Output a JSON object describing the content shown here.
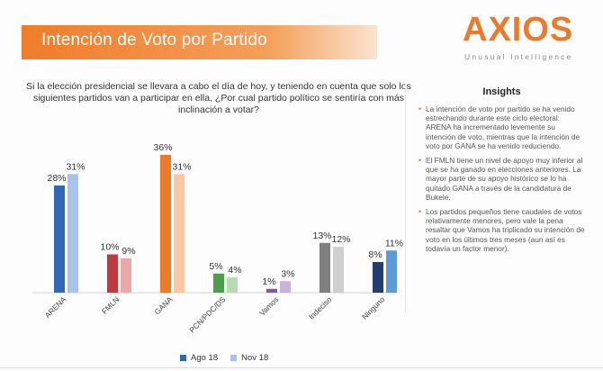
{
  "header": {
    "title": "Intención de Voto por Partido",
    "logo": "AXIOS",
    "tagline": "Unusual Intelligence"
  },
  "question": "Si la elección presidencial se llevara a cabo el día de hoy, y teniendo en cuenta que solo los siguientes partidos van a participar en ella, ¿Por cual partido político se sentiría con más inclinación a votar?",
  "insights": {
    "heading": "Insights",
    "items": [
      "La intención de voto por partido se ha venido estrechando durante este ciclo electoral: ARENA ha incrementado levemente su intención de voto, mientras que la intención de voto por GANA se ha venido reduciendo.",
      "El FMLN tiene un nivel de apoyo muy inferior al que se ha ganado en elecciones anteriores.  La mayor parte de su apoyo histórico se lo ha quitado GANA a través de la candidatura de Bukele.",
      "Los partidos pequeños tiene caudales de votos relativamente menores, pero vale la pena resaltar que Vamos ha triplicado su intención de voto en los últimos tres meses (aun así es todavía un factor menor)."
    ]
  },
  "chart_data": {
    "type": "bar",
    "categories": [
      "ARENA",
      "FMLN",
      "GANA",
      "PCN/PDC/DS",
      "Vamos",
      "Indeciso",
      "Ninguno"
    ],
    "series": [
      {
        "name": "Ago 18",
        "values": [
          28,
          10,
          36,
          5,
          1,
          13,
          8
        ],
        "labels": [
          "28%",
          "10%",
          "36%",
          "5%",
          "1%",
          "13%",
          "8%"
        ]
      },
      {
        "name": "Nov 18",
        "values": [
          31,
          9,
          31,
          4,
          3,
          12,
          11
        ],
        "labels": [
          "31%",
          "9%",
          "31%",
          "4%",
          "3%",
          "12%",
          "11%"
        ]
      }
    ],
    "colors": {
      "ARENA": [
        "#2f68b5",
        "#a9c3ea"
      ],
      "FMLN": [
        "#c0393d",
        "#eba8a8"
      ],
      "GANA": [
        "#ec7a2c",
        "#f7c8a2"
      ],
      "PCN/PDC/DS": [
        "#4aa04a",
        "#b6dcb0"
      ],
      "Vamos": [
        "#7b5a9e",
        "#c5b3da"
      ],
      "Indeciso": [
        "#7f7f7f",
        "#cfcfcf"
      ],
      "Ninguno": [
        "#233e6e",
        "#5a9bd8"
      ]
    },
    "legend_colors": [
      "#2f68b5",
      "#a9c3ea"
    ],
    "ylim": [
      0,
      40
    ],
    "grid": false,
    "legend_position": "bottom"
  }
}
